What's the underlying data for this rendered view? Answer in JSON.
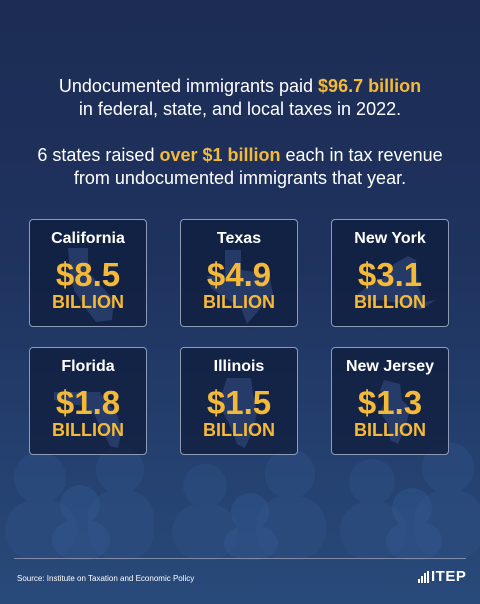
{
  "headline1": {
    "line1_pre": "Undocumented immigrants paid ",
    "line1_highlight": "$96.7 billion",
    "line2": "in federal, state, and local taxes in 2022."
  },
  "headline2": {
    "line1_pre": "6 states raised ",
    "line1_highlight": "over $1 billion",
    "line1_post": " each in tax revenue",
    "line2": "from undocumented immigrants that year."
  },
  "cards": [
    {
      "state": "California",
      "amount": "$8.5",
      "unit": "BILLION"
    },
    {
      "state": "Texas",
      "amount": "$4.9",
      "unit": "BILLION"
    },
    {
      "state": "New York",
      "amount": "$3.1",
      "unit": "BILLION"
    },
    {
      "state": "Florida",
      "amount": "$1.8",
      "unit": "BILLION"
    },
    {
      "state": "Illinois",
      "amount": "$1.5",
      "unit": "BILLION"
    },
    {
      "state": "New Jersey",
      "amount": "$1.3",
      "unit": "BILLION"
    }
  ],
  "footer": {
    "source": "Source: Institute on Taxation and Economic Policy",
    "logo_text": "ITEP"
  },
  "colors": {
    "background": "#1f335f",
    "accent": "#f5b93a",
    "text": "#ffffff",
    "card_border": "#8d9bb5"
  }
}
